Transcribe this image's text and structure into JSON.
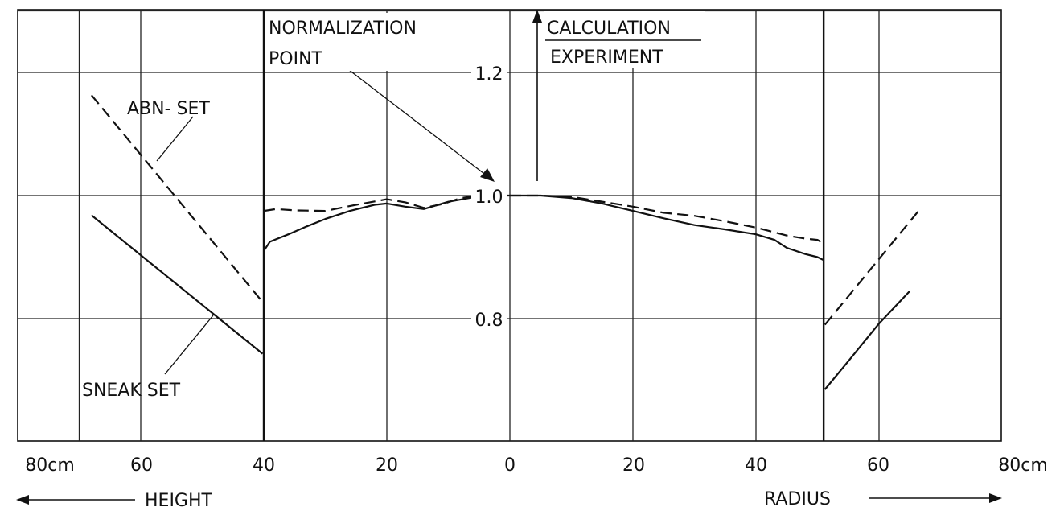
{
  "chart_data": {
    "type": "line",
    "title": "",
    "axis_label": {
      "ratio_line1": "CALCULATION",
      "ratio_line2": "EXPERIMENT",
      "left_axis": "HEIGHT",
      "right_axis": "RADIUS"
    },
    "x_ticks_left": [
      "80cm",
      "60",
      "40",
      "20"
    ],
    "x_ticks_right": [
      "20",
      "40",
      "60",
      "80cm"
    ],
    "x_tick_center": "0",
    "y_ticks": [
      "1.2",
      "1.0",
      "0.8"
    ],
    "y_range": [
      0.6,
      1.4
    ],
    "x_range": [
      0,
      80
    ],
    "grid": true,
    "boundary_height_cm": 40,
    "boundary_radius_cm": 51,
    "annotations": {
      "normalization_line1": "NORMALIZATION",
      "normalization_line2": "POINT",
      "abn": "ABN- SET",
      "sneak": "SNEAK SET"
    },
    "series": [
      {
        "name": "ABN- SET",
        "style": "dashed",
        "height": [
          [
            68,
            1.163
          ],
          [
            40.2,
            0.827
          ]
        ],
        "height_core": [
          [
            40,
            0.975
          ],
          [
            38,
            0.978
          ],
          [
            35,
            0.976
          ],
          [
            30,
            0.975
          ],
          [
            25,
            0.985
          ],
          [
            20,
            0.994
          ],
          [
            17,
            0.989
          ],
          [
            14,
            0.98
          ],
          [
            11,
            0.986
          ],
          [
            8,
            0.996
          ],
          [
            5,
            1.0
          ],
          [
            0,
            1.0
          ]
        ],
        "radius": [
          [
            0,
            1.0
          ],
          [
            5,
            1.0
          ],
          [
            10,
            0.998
          ],
          [
            20,
            0.982
          ],
          [
            25,
            0.972
          ],
          [
            30,
            0.967
          ],
          [
            35,
            0.958
          ],
          [
            40,
            0.948
          ],
          [
            45,
            0.935
          ],
          [
            48,
            0.93
          ],
          [
            50,
            0.928
          ],
          [
            51,
            0.922
          ]
        ],
        "radius_outer": [
          [
            51.2,
            0.79
          ],
          [
            66.5,
            0.976
          ]
        ]
      },
      {
        "name": "SNEAK SET",
        "style": "solid",
        "height": [
          [
            68,
            0.968
          ],
          [
            40.2,
            0.743
          ]
        ],
        "height_core": [
          [
            40,
            0.91
          ],
          [
            39,
            0.925
          ],
          [
            36,
            0.937
          ],
          [
            33,
            0.95
          ],
          [
            30,
            0.962
          ],
          [
            26,
            0.975
          ],
          [
            22,
            0.985
          ],
          [
            20,
            0.987
          ],
          [
            17,
            0.982
          ],
          [
            14,
            0.978
          ],
          [
            10,
            0.99
          ],
          [
            6,
            0.997
          ],
          [
            3,
            1.0
          ],
          [
            0,
            1.0
          ]
        ],
        "radius": [
          [
            0,
            1.0
          ],
          [
            5,
            1.0
          ],
          [
            10,
            0.996
          ],
          [
            15,
            0.987
          ],
          [
            20,
            0.975
          ],
          [
            25,
            0.963
          ],
          [
            30,
            0.952
          ],
          [
            35,
            0.945
          ],
          [
            40,
            0.937
          ],
          [
            43,
            0.928
          ],
          [
            45,
            0.915
          ],
          [
            48,
            0.905
          ],
          [
            50,
            0.9
          ],
          [
            51,
            0.895
          ]
        ],
        "radius_outer": [
          [
            51.2,
            0.685
          ],
          [
            55,
            0.731
          ],
          [
            60,
            0.792
          ],
          [
            65,
            0.845
          ]
        ]
      }
    ]
  }
}
